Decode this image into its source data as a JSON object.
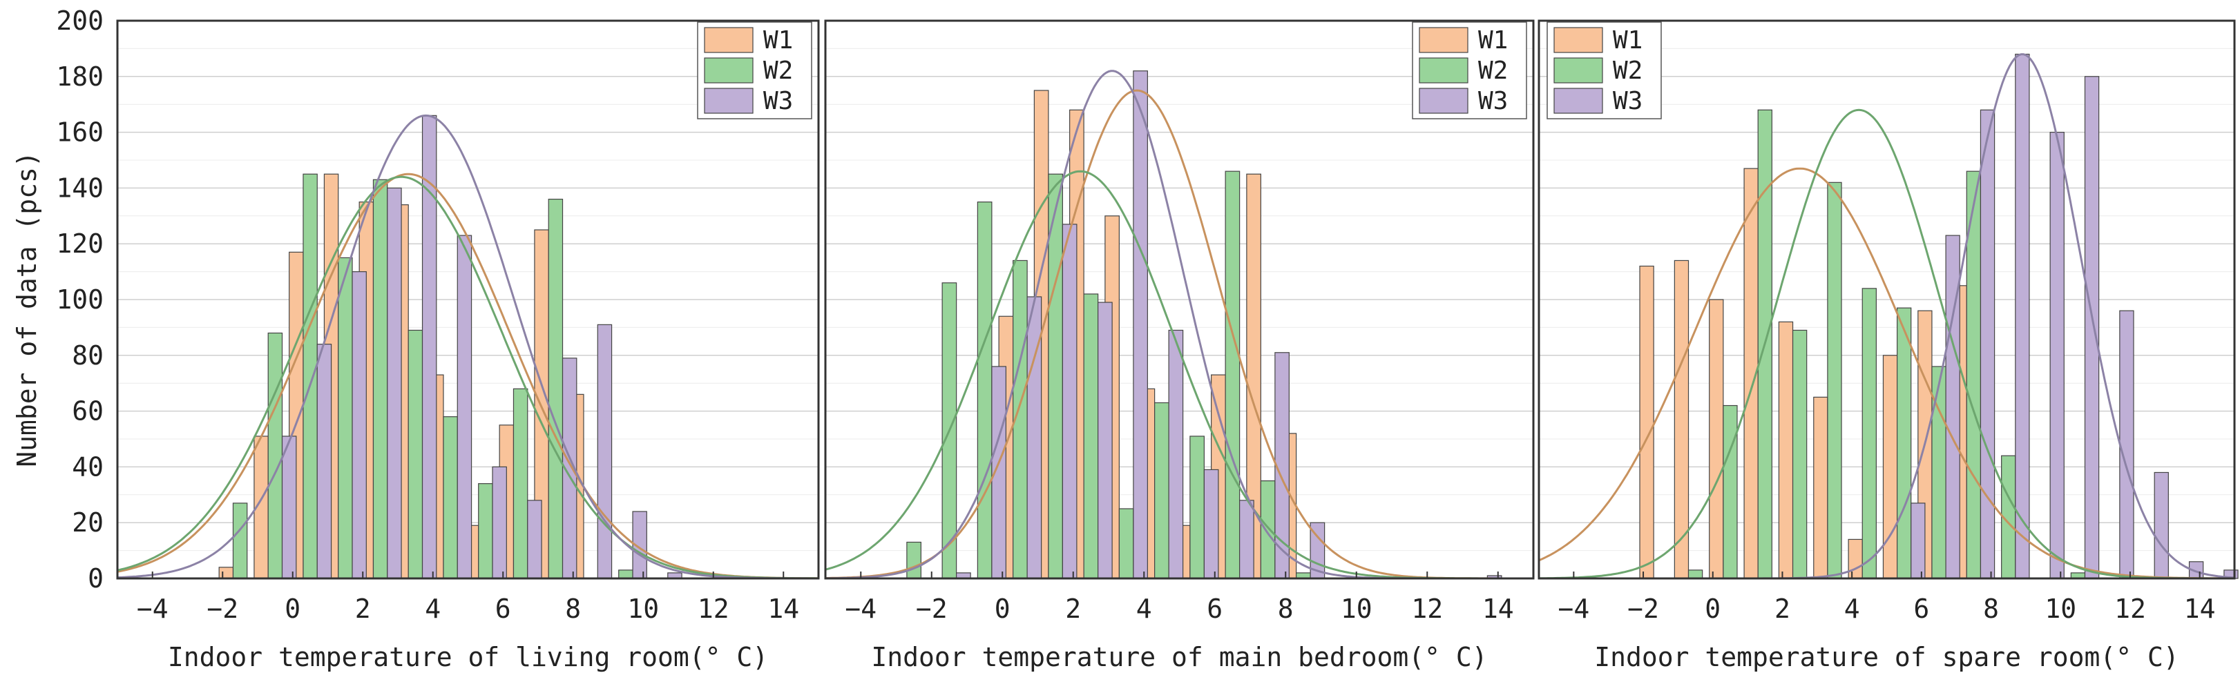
{
  "chart_data": {
    "type": "bar",
    "ylabel": "Number of data (pcs)",
    "ylim": [
      0,
      200
    ],
    "yticks": [
      "0",
      "20",
      "40",
      "60",
      "80",
      "100",
      "120",
      "140",
      "160",
      "180",
      "200"
    ],
    "xticks": [
      "−4",
      "−2",
      "0",
      "2",
      "4",
      "6",
      "8",
      "10",
      "12",
      "14"
    ],
    "legend": [
      "W1",
      "W2",
      "W3"
    ],
    "colors": {
      "W1": "#F9C39A",
      "W2": "#98D49A",
      "W3": "#BFAFD6",
      "edge": "#444444",
      "W1_curve": "#C8925E",
      "W2_curve": "#6DA66F",
      "W3_curve": "#8C82A6"
    },
    "panels": [
      {
        "xlabel": "Indoor temperature of living room(° C)",
        "xlim": [
          -5,
          15
        ],
        "bar_width": 0.4,
        "series": [
          {
            "name": "W1",
            "x": [
              -1.9,
              -0.9,
              0.1,
              1.1,
              2.1,
              3.1,
              4.1,
              5.1,
              6.1,
              7.1,
              8.1
            ],
            "values": [
              4,
              51,
              117,
              145,
              135,
              134,
              73,
              19,
              55,
              125,
              66
            ],
            "curve": {
              "mean": 3.3,
              "sd": 2.9,
              "peak": 145
            }
          },
          {
            "name": "W2",
            "x": [
              -1.5,
              -0.5,
              0.5,
              1.5,
              2.5,
              3.5,
              4.5,
              5.5,
              6.5,
              7.5,
              9.5
            ],
            "values": [
              27,
              88,
              145,
              115,
              143,
              89,
              58,
              34,
              68,
              136,
              3
            ],
            "curve": {
              "mean": 3.1,
              "sd": 2.9,
              "peak": 144
            }
          },
          {
            "name": "W3",
            "x": [
              -0.1,
              0.9,
              1.9,
              2.9,
              3.9,
              4.9,
              5.9,
              6.9,
              7.9,
              8.9,
              9.9,
              10.9
            ],
            "values": [
              51,
              84,
              110,
              140,
              166,
              123,
              40,
              28,
              79,
              91,
              24,
              2
            ],
            "curve": {
              "mean": 3.8,
              "sd": 2.5,
              "peak": 166
            }
          }
        ]
      },
      {
        "xlabel": "Indoor temperature of main bedroom(° C)",
        "xlim": [
          -5,
          15
        ],
        "bar_width": 0.4,
        "series": [
          {
            "name": "W1",
            "x": [
              0.1,
              1.1,
              2.1,
              3.1,
              4.1,
              5.1,
              6.1,
              7.1,
              8.1
            ],
            "values": [
              94,
              175,
              168,
              130,
              68,
              19,
              73,
              145,
              52
            ],
            "curve": {
              "mean": 3.8,
              "sd": 2.3,
              "peak": 175
            }
          },
          {
            "name": "W2",
            "x": [
              -2.5,
              -1.5,
              -0.5,
              0.5,
              1.5,
              2.5,
              3.5,
              4.5,
              5.5,
              6.5,
              7.5,
              8.5
            ],
            "values": [
              13,
              106,
              135,
              114,
              145,
              102,
              25,
              63,
              51,
              146,
              35,
              2
            ],
            "curve": {
              "mean": 2.2,
              "sd": 2.6,
              "peak": 146
            }
          },
          {
            "name": "W3",
            "x": [
              -1.1,
              -0.1,
              0.9,
              1.9,
              2.9,
              3.9,
              4.9,
              5.9,
              6.9,
              7.9,
              8.9,
              13.9
            ],
            "values": [
              2,
              76,
              101,
              127,
              99,
              182,
              89,
              39,
              28,
              81,
              20,
              1
            ],
            "curve": {
              "mean": 3.1,
              "sd": 2.0,
              "peak": 182
            }
          }
        ]
      },
      {
        "xlabel": "Indoor temperature of spare room(° C)",
        "xlim": [
          -5,
          15
        ],
        "bar_width": 0.4,
        "series": [
          {
            "name": "W1",
            "x": [
              -1.9,
              -0.9,
              0.1,
              1.1,
              2.1,
              3.1,
              4.1,
              5.1,
              6.1,
              7.1
            ],
            "values": [
              112,
              114,
              100,
              147,
              92,
              65,
              14,
              80,
              96,
              105
            ],
            "curve": {
              "mean": 2.5,
              "sd": 3.0,
              "peak": 147
            }
          },
          {
            "name": "W2",
            "x": [
              -0.5,
              0.5,
              1.5,
              2.5,
              3.5,
              4.5,
              5.5,
              6.5,
              7.5,
              8.5,
              10.5
            ],
            "values": [
              3,
              62,
              168,
              89,
              142,
              104,
              97,
              76,
              146,
              44,
              2
            ],
            "curve": {
              "mean": 4.2,
              "sd": 2.3,
              "peak": 168
            }
          },
          {
            "name": "W3",
            "x": [
              5.9,
              6.9,
              7.9,
              8.9,
              9.9,
              10.9,
              11.9,
              12.9,
              13.9,
              14.9
            ],
            "values": [
              27,
              123,
              168,
              188,
              160,
              180,
              96,
              38,
              6,
              3
            ],
            "curve": {
              "mean": 8.9,
              "sd": 1.7,
              "peak": 188
            }
          }
        ]
      }
    ]
  }
}
